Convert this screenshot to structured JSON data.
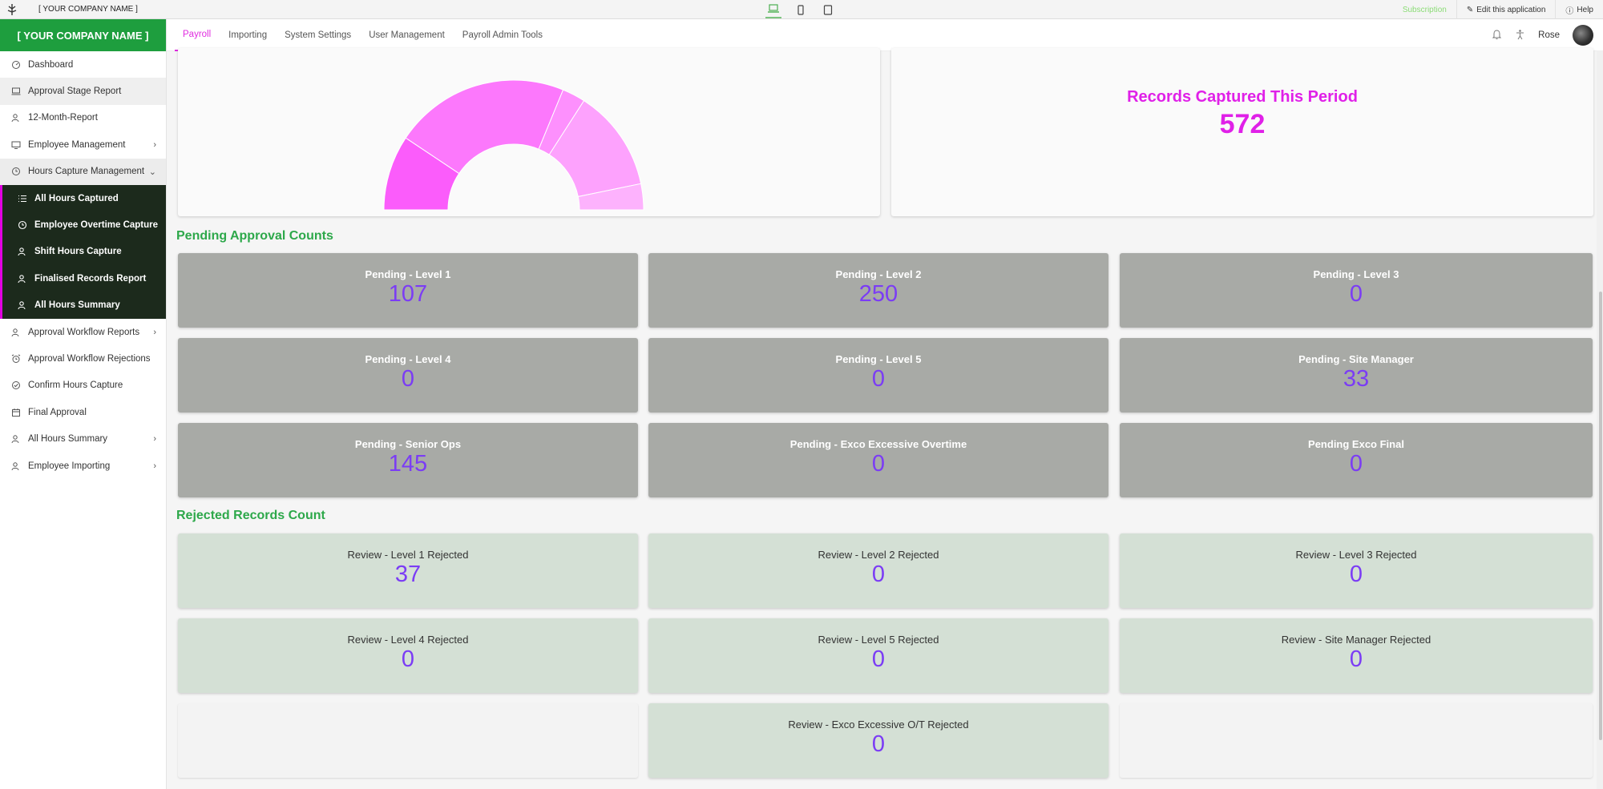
{
  "topbar": {
    "company": "[ YOUR COMPANY NAME ]",
    "subscription": "Subscription",
    "edit": "Edit this application",
    "help": "Help"
  },
  "sidebar": {
    "brand": "[ YOUR COMPANY NAME ]",
    "items": [
      {
        "label": "Dashboard",
        "icon": "dashboard-icon"
      },
      {
        "label": "Approval Stage Report",
        "icon": "report-icon"
      },
      {
        "label": "12-Month-Report",
        "icon": "users-icon"
      },
      {
        "label": "Employee Management",
        "icon": "monitor-icon"
      },
      {
        "label": "Hours Capture Management",
        "icon": "clock-icon"
      }
    ],
    "subitems": [
      {
        "label": "All Hours Captured"
      },
      {
        "label": "Employee Overtime Capture"
      },
      {
        "label": "Shift Hours Capture"
      },
      {
        "label": "Finalised Records Report"
      },
      {
        "label": "All Hours Summary"
      }
    ],
    "items2": [
      {
        "label": "Approval Workflow Reports"
      },
      {
        "label": "Approval Workflow Rejections"
      },
      {
        "label": "Confirm Hours Capture"
      },
      {
        "label": "Final Approval"
      },
      {
        "label": "All Hours Summary"
      },
      {
        "label": "Employee Importing"
      }
    ]
  },
  "tabs": [
    "Payroll",
    "Importing",
    "System Settings",
    "User Management",
    "Payroll Admin Tools"
  ],
  "user": {
    "name": "Rose"
  },
  "records": {
    "title": "Records Captured This Period",
    "value": "572"
  },
  "chart_data": {
    "type": "pie",
    "variant": "half-donut",
    "slice_colors": [
      "#fb5cfb",
      "#fc78fc",
      "#fd90fd",
      "#fda2fd",
      "#fdb2fd",
      "#fc6dfc",
      "#fb5cfb"
    ],
    "values": [
      107,
      250,
      0,
      0,
      0,
      33,
      145,
      0,
      0,
      37
    ]
  },
  "pending": {
    "title": "Pending Approval Counts",
    "tiles": [
      {
        "label": "Pending - Level 1",
        "value": "107"
      },
      {
        "label": "Pending - Level 2",
        "value": "250"
      },
      {
        "label": "Pending - Level 3",
        "value": "0"
      },
      {
        "label": "Pending - Level 4",
        "value": "0"
      },
      {
        "label": "Pending - Level 5",
        "value": "0"
      },
      {
        "label": "Pending - Site Manager",
        "value": "33"
      },
      {
        "label": "Pending - Senior Ops",
        "value": "145"
      },
      {
        "label": "Pending - Exco Excessive Overtime",
        "value": "0"
      },
      {
        "label": "Pending Exco Final",
        "value": "0"
      }
    ]
  },
  "rejected": {
    "title": "Rejected Records Count",
    "tiles": [
      {
        "label": "Review - Level 1 Rejected",
        "value": "37"
      },
      {
        "label": "Review - Level 2 Rejected",
        "value": "0"
      },
      {
        "label": "Review - Level 3 Rejected",
        "value": "0"
      },
      {
        "label": "Review - Level 4 Rejected",
        "value": "0"
      },
      {
        "label": "Review - Level 5 Rejected",
        "value": "0"
      },
      {
        "label": "Review - Site Manager Rejected",
        "value": "0"
      },
      {
        "label": "Review - Exco Excessive O/T Rejected",
        "value": "0"
      }
    ]
  },
  "colors": {
    "brand": "#1e9e3e",
    "accent": "#e020e8",
    "value": "#7b3cf5"
  }
}
